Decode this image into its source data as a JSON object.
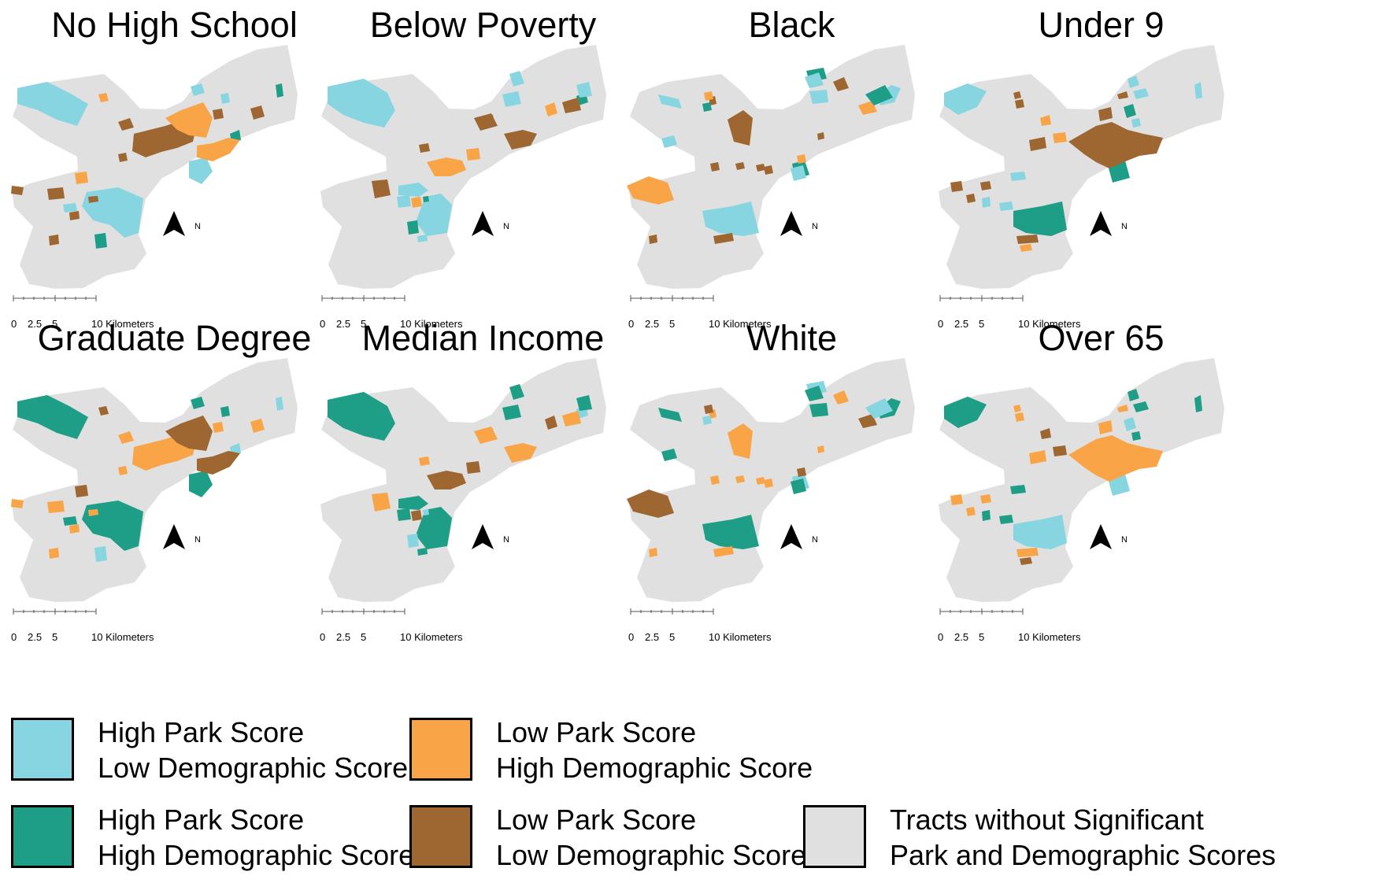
{
  "colors": {
    "high_park_low_demo": "#87d5e1",
    "high_park_high_demo": "#1e9e87",
    "low_park_high_demo": "#f9a446",
    "low_park_low_demo": "#9e6630",
    "no_significance": "#e0e0e0"
  },
  "scale_bar": {
    "labels": [
      "0",
      "2.5",
      "5",
      "10 Kilometers"
    ]
  },
  "north_arrow": {
    "label": "N"
  },
  "maps": [
    {
      "title": "No High School",
      "pattern": "A",
      "pos": "c",
      "neg": "b"
    },
    {
      "title": "Below Poverty",
      "pattern": "B",
      "pos": "c",
      "neg": "b"
    },
    {
      "title": "Black",
      "pattern": "C",
      "pos": "c",
      "neg": "b"
    },
    {
      "title": "Under 9",
      "pattern": "D",
      "pos": "c",
      "neg": "b"
    },
    {
      "title": "Graduate Degree",
      "pattern": "A",
      "pos": "t",
      "neg": "o"
    },
    {
      "title": "Median Income",
      "pattern": "B",
      "pos": "t",
      "neg": "o"
    },
    {
      "title": "White",
      "pattern": "C",
      "pos": "t",
      "neg": "o"
    },
    {
      "title": "Over 65",
      "pattern": "D",
      "pos": "t",
      "neg": "o"
    }
  ],
  "legend": [
    {
      "key": "high_park_low_demo",
      "line1": "High Park  Score",
      "line2": "Low Demographic Score"
    },
    {
      "key": "low_park_high_demo",
      "line1": "Low Park Score",
      "line2": "High Demographic Score"
    },
    {
      "key": "high_park_high_demo",
      "line1": "High Park  Score",
      "line2": "High Demographic Score"
    },
    {
      "key": "low_park_low_demo",
      "line1": "Low Park Score",
      "line2": "Low Demographic Score"
    },
    {
      "key": "no_significance",
      "line1": "Tracts   without Significant",
      "line2": "Park and Demographic Scores"
    }
  ]
}
